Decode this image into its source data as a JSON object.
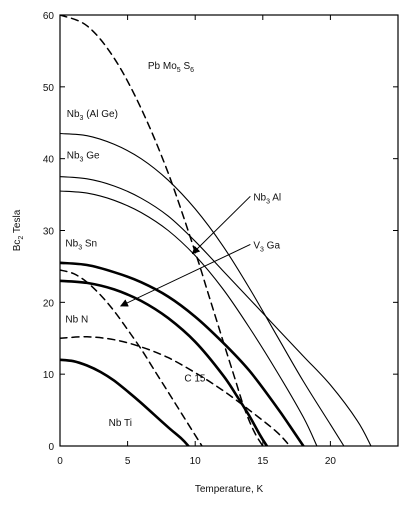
{
  "chart_data": {
    "type": "line",
    "title": "",
    "xlabel": "Temperature, K",
    "ylabel": "Bc2 Tesla",
    "ylabel_parts": {
      "prefix": "Bc",
      "subscript": "2",
      "suffix": " Tesla"
    },
    "xlim": [
      0,
      25
    ],
    "ylim": [
      0,
      60
    ],
    "x_ticks": [
      0,
      5,
      10,
      15,
      20
    ],
    "y_ticks": [
      0,
      10,
      20,
      30,
      40,
      50,
      60
    ],
    "grid": false,
    "legend": "none",
    "series": [
      {
        "name": "Pb Mo5 S6",
        "label": {
          "parts": [
            [
              "Pb Mo",
              false
            ],
            [
              "5",
              true
            ],
            [
              " S",
              false
            ],
            [
              "6",
              true
            ]
          ]
        },
        "style": "dashed",
        "width": 1.5,
        "x": [
          0,
          2,
          4,
          6,
          8,
          10,
          11,
          12,
          13,
          13.5,
          14,
          14.5,
          15
        ],
        "y": [
          60,
          58.5,
          54,
          47,
          38,
          27,
          21,
          15,
          9,
          6,
          3.5,
          1.5,
          0
        ]
      },
      {
        "name": "Nb3 (Al Ge)",
        "label": {
          "parts": [
            [
              "Nb",
              false
            ],
            [
              "3",
              true
            ],
            [
              " (Al Ge)",
              false
            ]
          ]
        },
        "style": "solid",
        "width": 1.1,
        "x": [
          0,
          2,
          4,
          6,
          8,
          10,
          12,
          14,
          16,
          18,
          20,
          21
        ],
        "y": [
          43.5,
          43.2,
          42,
          40,
          37,
          33,
          28,
          22,
          15.5,
          9,
          3,
          0
        ]
      },
      {
        "name": "Nb3 Ge",
        "label": {
          "parts": [
            [
              "Nb",
              false
            ],
            [
              "3",
              true
            ],
            [
              " Ge",
              false
            ]
          ]
        },
        "style": "solid",
        "width": 1.1,
        "x": [
          0,
          2,
          4,
          6,
          8,
          10,
          12,
          14,
          16,
          18,
          20,
          22,
          23
        ],
        "y": [
          37.5,
          37.2,
          36.2,
          34.5,
          32,
          28.5,
          24.5,
          20.5,
          16.5,
          12.5,
          8.5,
          3.5,
          0
        ]
      },
      {
        "name": "Nb3 Al",
        "label": {
          "parts": [
            [
              "Nb",
              false
            ],
            [
              "3",
              true
            ],
            [
              " Al",
              false
            ]
          ]
        },
        "style": "solid",
        "width": 1.1,
        "x": [
          0,
          2,
          4,
          6,
          8,
          10,
          12,
          14,
          16,
          18,
          19
        ],
        "y": [
          35.5,
          35.2,
          34.2,
          32.5,
          30,
          26.5,
          22,
          16.5,
          10.5,
          4,
          0
        ]
      },
      {
        "name": "Nb3 Sn",
        "label": {
          "parts": [
            [
              "Nb",
              false
            ],
            [
              "3",
              true
            ],
            [
              " Sn",
              false
            ]
          ]
        },
        "style": "solid",
        "width": 2.6,
        "x": [
          0,
          2,
          4,
          6,
          8,
          10,
          12,
          14,
          16,
          17,
          18
        ],
        "y": [
          25.5,
          25.2,
          24.2,
          22.8,
          20.8,
          18,
          14.5,
          10.5,
          5.5,
          2.8,
          0
        ]
      },
      {
        "name": "V3 Ga",
        "label": {
          "parts": [
            [
              "V",
              false
            ],
            [
              "3",
              true
            ],
            [
              " Ga",
              false
            ]
          ]
        },
        "style": "solid",
        "width": 2.6,
        "x": [
          0,
          2,
          4,
          6,
          8,
          10,
          12,
          13,
          14,
          14.8,
          15.3
        ],
        "y": [
          23,
          22.7,
          21.8,
          20.2,
          17.8,
          14.5,
          10,
          7.2,
          4.2,
          1.5,
          0
        ]
      },
      {
        "name": "Nb N",
        "label": {
          "parts": [
            [
              "Nb N",
              false
            ]
          ]
        },
        "style": "dashed",
        "width": 1.5,
        "x": [
          0,
          2,
          4,
          6,
          8,
          10,
          12,
          14,
          16,
          17
        ],
        "y": [
          15,
          15.2,
          14.8,
          13.8,
          12.3,
          10.2,
          7.8,
          5,
          2,
          0
        ]
      },
      {
        "name": "C 15",
        "label": {
          "parts": [
            [
              "C 15",
              false
            ]
          ]
        },
        "style": "dashed",
        "width": 1.5,
        "x": [
          0,
          1,
          2,
          3,
          4,
          5,
          6,
          7,
          8,
          9,
          10,
          10.5
        ],
        "y": [
          24.5,
          24,
          22.8,
          21,
          18.8,
          16.2,
          13.5,
          10.5,
          7.5,
          4.5,
          1.5,
          0
        ]
      },
      {
        "name": "Nb Ti",
        "label": {
          "parts": [
            [
              "Nb Ti",
              false
            ]
          ]
        },
        "style": "solid",
        "width": 2.6,
        "x": [
          0,
          1,
          2,
          3,
          4,
          5,
          6,
          7,
          8,
          9,
          9.5
        ],
        "y": [
          12,
          11.8,
          11.2,
          10.3,
          9.1,
          7.6,
          6,
          4.3,
          2.6,
          1,
          0
        ]
      }
    ],
    "annotations": [
      {
        "series": "Pb Mo5 S6",
        "label_pos": [
          6.5,
          52.5
        ],
        "anchor": "start"
      },
      {
        "series": "Nb3 (Al Ge)",
        "label_pos": [
          0.5,
          45.8
        ],
        "anchor": "start"
      },
      {
        "series": "Nb3 Ge",
        "label_pos": [
          0.5,
          40
        ],
        "anchor": "start"
      },
      {
        "series": "Nb3 Sn",
        "label_pos": [
          0.4,
          27.8
        ],
        "anchor": "start"
      },
      {
        "series": "Nb N",
        "label_pos": [
          0.4,
          17.2
        ],
        "anchor": "start"
      },
      {
        "series": "C 15",
        "label_pos": [
          9.2,
          9
        ],
        "anchor": "start"
      },
      {
        "series": "Nb Ti",
        "label_pos": [
          3.6,
          2.8
        ],
        "anchor": "start"
      },
      {
        "series": "Nb3 Al",
        "label_pos": [
          14.3,
          34.2
        ],
        "anchor": "start",
        "arrow_to": [
          9.8,
          26.8
        ]
      },
      {
        "series": "V3 Ga",
        "label_pos": [
          14.3,
          27.5
        ],
        "anchor": "start",
        "arrow_to": [
          4.5,
          19.5
        ]
      }
    ]
  }
}
